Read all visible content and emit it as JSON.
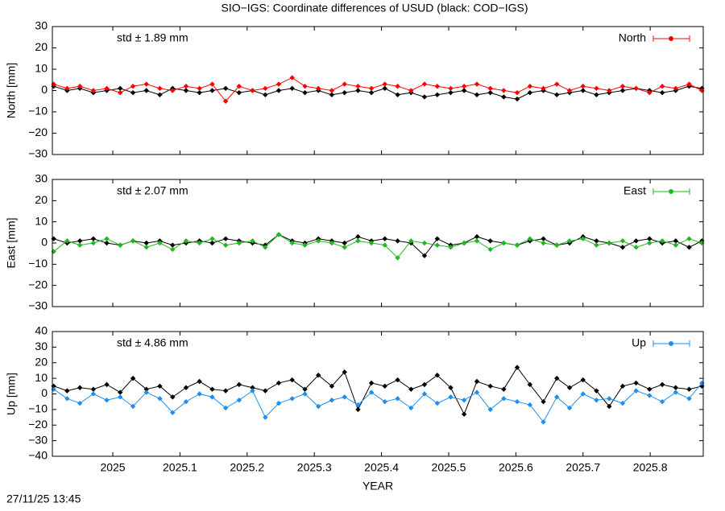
{
  "title": "SIO−IGS: Coordinate differences of USUD (black: COD−IGS)",
  "timestamp": "27/11/25 13:45",
  "chart_data": [
    {
      "type": "line",
      "ylabel": "North [mm]",
      "annotation": "std ± 1.89 mm",
      "legend": "upper right",
      "xlim": [
        2024.91,
        2025.879
      ],
      "ylim": [
        -30,
        30
      ],
      "yticks": [
        {
          "value": -30,
          "label": "−30"
        },
        {
          "value": -20,
          "label": "−20"
        },
        {
          "value": -10,
          "label": "−10"
        },
        0,
        10,
        20,
        30
      ],
      "x": [
        2024.912,
        2024.932,
        2024.951,
        2024.971,
        2024.991,
        2025.011,
        2025.03,
        2025.05,
        2025.07,
        2025.089,
        2025.109,
        2025.129,
        2025.148,
        2025.168,
        2025.188,
        2025.208,
        2025.227,
        2025.247,
        2025.267,
        2025.286,
        2025.306,
        2025.326,
        2025.345,
        2025.365,
        2025.385,
        2025.405,
        2025.424,
        2025.444,
        2025.464,
        2025.483,
        2025.503,
        2025.523,
        2025.542,
        2025.562,
        2025.582,
        2025.602,
        2025.621,
        2025.641,
        2025.661,
        2025.68,
        2025.7,
        2025.72,
        2025.739,
        2025.759,
        2025.779,
        2025.799,
        2025.818,
        2025.838,
        2025.858,
        2025.877
      ],
      "series": [
        {
          "color": "#000000",
          "values": [
            2,
            0,
            1,
            -1,
            0,
            1,
            -1,
            0,
            -2,
            1,
            0,
            -1,
            0,
            1,
            -1,
            0,
            -2,
            0,
            1,
            -1,
            0,
            -2,
            -1,
            0,
            -1,
            1,
            -2,
            -1,
            -3,
            -2,
            -1,
            0,
            -2,
            -1,
            -3,
            -4,
            -1,
            0,
            -2,
            -1,
            0,
            -2,
            -1,
            0,
            1,
            0,
            -1,
            0,
            2,
            1
          ]
        },
        {
          "name": "North",
          "color": "#ff0000",
          "values": [
            3,
            1,
            2,
            0,
            1,
            -1,
            2,
            3,
            1,
            0,
            2,
            1,
            3,
            -5,
            2,
            0,
            1,
            3,
            6,
            2,
            1,
            0,
            3,
            2,
            1,
            3,
            2,
            0,
            3,
            2,
            1,
            2,
            3,
            1,
            0,
            -1,
            2,
            1,
            3,
            0,
            2,
            1,
            0,
            2,
            1,
            -1,
            2,
            1,
            3,
            0
          ]
        }
      ]
    },
    {
      "type": "line",
      "ylabel": "East [mm]",
      "annotation": "std ± 2.07 mm",
      "legend": "upper right",
      "xlim": [
        2024.91,
        2025.879
      ],
      "ylim": [
        -30,
        30
      ],
      "yticks": [
        {
          "value": -30,
          "label": "−30"
        },
        {
          "value": -20,
          "label": "−20"
        },
        {
          "value": -10,
          "label": "−10"
        },
        0,
        10,
        20,
        30
      ],
      "x": [
        2024.912,
        2024.932,
        2024.951,
        2024.971,
        2024.991,
        2025.011,
        2025.03,
        2025.05,
        2025.07,
        2025.089,
        2025.109,
        2025.129,
        2025.148,
        2025.168,
        2025.188,
        2025.208,
        2025.227,
        2025.247,
        2025.267,
        2025.286,
        2025.306,
        2025.326,
        2025.345,
        2025.365,
        2025.385,
        2025.405,
        2025.424,
        2025.444,
        2025.464,
        2025.483,
        2025.503,
        2025.523,
        2025.542,
        2025.562,
        2025.582,
        2025.602,
        2025.621,
        2025.641,
        2025.661,
        2025.68,
        2025.7,
        2025.72,
        2025.739,
        2025.759,
        2025.779,
        2025.799,
        2025.818,
        2025.838,
        2025.858,
        2025.877
      ],
      "series": [
        {
          "color": "#000000",
          "values": [
            2,
            0,
            1,
            2,
            0,
            -1,
            1,
            0,
            1,
            -1,
            0,
            1,
            0,
            2,
            1,
            0,
            -1,
            4,
            1,
            0,
            2,
            1,
            0,
            3,
            1,
            2,
            1,
            0,
            -6,
            2,
            -1,
            0,
            3,
            1,
            0,
            -1,
            1,
            2,
            -1,
            0,
            3,
            1,
            0,
            -2,
            1,
            2,
            0,
            1,
            -2,
            1
          ]
        },
        {
          "name": "East",
          "color": "#20b820",
          "values": [
            -4,
            1,
            -1,
            0,
            2,
            -1,
            1,
            -2,
            0,
            -3,
            1,
            0,
            2,
            -1,
            0,
            1,
            -2,
            4,
            0,
            -1,
            1,
            0,
            -2,
            1,
            0,
            -1,
            -7,
            1,
            0,
            -1,
            -2,
            0,
            1,
            -3,
            0,
            -1,
            2,
            0,
            -1,
            1,
            2,
            -1,
            0,
            1,
            -2,
            0,
            1,
            -1,
            2,
            0
          ]
        }
      ]
    },
    {
      "type": "line",
      "ylabel": "Up [mm]",
      "annotation": "std ± 4.86 mm",
      "legend": "upper right",
      "xlabel": "YEAR",
      "xlim": [
        2024.91,
        2025.879
      ],
      "ylim": [
        -40,
        40
      ],
      "xticks": [
        2025,
        2025.1,
        2025.2,
        2025.3,
        2025.4,
        2025.5,
        2025.6,
        2025.7,
        2025.8
      ],
      "yticks": [
        {
          "value": -40,
          "label": "−40"
        },
        {
          "value": -30,
          "label": "−30"
        },
        {
          "value": -20,
          "label": "−20"
        },
        {
          "value": -10,
          "label": "−10"
        },
        0,
        10,
        20,
        30,
        40
      ],
      "x": [
        2024.912,
        2024.932,
        2024.951,
        2024.971,
        2024.991,
        2025.011,
        2025.03,
        2025.05,
        2025.07,
        2025.089,
        2025.109,
        2025.129,
        2025.148,
        2025.168,
        2025.188,
        2025.208,
        2025.227,
        2025.247,
        2025.267,
        2025.286,
        2025.306,
        2025.326,
        2025.345,
        2025.365,
        2025.385,
        2025.405,
        2025.424,
        2025.444,
        2025.464,
        2025.483,
        2025.503,
        2025.523,
        2025.542,
        2025.562,
        2025.582,
        2025.602,
        2025.621,
        2025.641,
        2025.661,
        2025.68,
        2025.7,
        2025.72,
        2025.739,
        2025.759,
        2025.779,
        2025.799,
        2025.818,
        2025.838,
        2025.858,
        2025.877
      ],
      "series": [
        {
          "color": "#000000",
          "values": [
            5,
            2,
            4,
            3,
            6,
            1,
            10,
            3,
            5,
            -2,
            4,
            8,
            3,
            2,
            6,
            4,
            2,
            7,
            9,
            3,
            12,
            5,
            14,
            -10,
            7,
            5,
            9,
            3,
            6,
            12,
            4,
            -13,
            8,
            5,
            3,
            17,
            6,
            -5,
            10,
            4,
            9,
            2,
            -8,
            5,
            7,
            3,
            6,
            4,
            3,
            5
          ]
        },
        {
          "name": "Up",
          "color": "#1e8fef",
          "values": [
            3,
            -3,
            -6,
            0,
            -4,
            -2,
            -8,
            1,
            -3,
            -12,
            -5,
            0,
            -2,
            -9,
            -4,
            2,
            -15,
            -6,
            -3,
            0,
            -8,
            -4,
            -2,
            -7,
            1,
            -5,
            -3,
            -9,
            0,
            -6,
            -2,
            -4,
            1,
            -10,
            -3,
            -5,
            -7,
            -18,
            -2,
            -9,
            0,
            -4,
            -3,
            -6,
            2,
            -1,
            -5,
            1,
            -3,
            7
          ]
        }
      ]
    }
  ]
}
